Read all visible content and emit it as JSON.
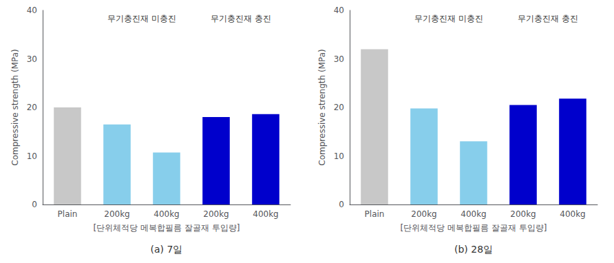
{
  "chart_data": [
    {
      "type": "bar",
      "title": "(a) 7일",
      "categories": [
        "Plain",
        "200kg",
        "400kg",
        "200kg",
        "400kg"
      ],
      "values": [
        20.0,
        16.5,
        10.7,
        18.0,
        18.6
      ],
      "colors": [
        "#c8c8c8",
        "#87ceeb",
        "#87ceeb",
        "#0000cc",
        "#0000cc"
      ],
      "xlabel": "[단위체적당 메복합필름 잘골재 투입량]",
      "ylabel": "Compressive strength (MPa)",
      "annotations": [
        "무기충진재 미충진",
        "무기충진재 충진"
      ],
      "ylim": [
        0,
        40
      ],
      "yticks": [
        0,
        10,
        20,
        30,
        40
      ],
      "grid": false
    },
    {
      "type": "bar",
      "title": "(b) 28일",
      "categories": [
        "Plain",
        "200kg",
        "400kg",
        "200kg",
        "400kg"
      ],
      "values": [
        32.0,
        19.8,
        13.0,
        20.5,
        21.8
      ],
      "colors": [
        "#c8c8c8",
        "#87ceeb",
        "#87ceeb",
        "#0000cc",
        "#0000cc"
      ],
      "xlabel": "[단위체적당 메복합필름 잘골재 투입량]",
      "ylabel": "Compressive strength (MPa)",
      "annotations": [
        "무기충진재 미충진",
        "무기충진재 충진"
      ],
      "ylim": [
        0,
        40
      ],
      "yticks": [
        0,
        10,
        20,
        30,
        40
      ],
      "grid": false
    }
  ]
}
